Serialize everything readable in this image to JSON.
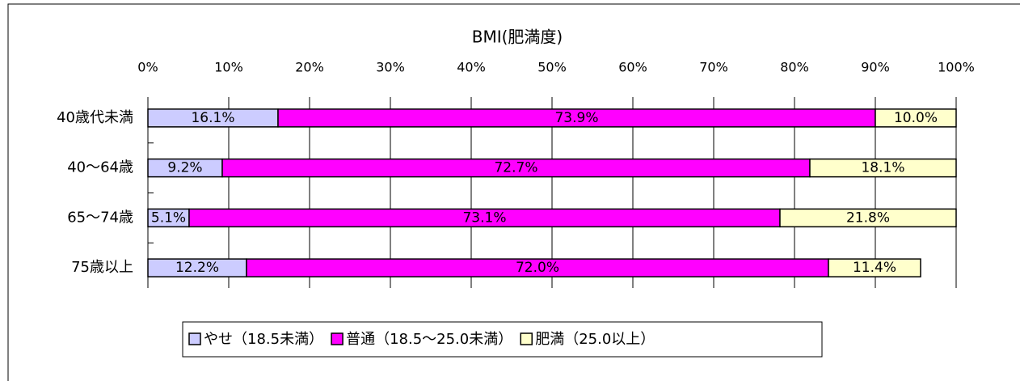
{
  "chart_data": {
    "type": "bar",
    "orientation": "horizontal",
    "stacked": true,
    "title": "BMI(肥満度)",
    "categories": [
      "40歳代未満",
      "40～64歳",
      "65～74歳",
      "75歳以上"
    ],
    "series": [
      {
        "name": "やせ（18.5未満）",
        "color": "#ccccff",
        "values": [
          16.1,
          9.2,
          5.1,
          12.2
        ],
        "value_labels": [
          "16.1%",
          "9.2%",
          "5.1%",
          "12.2%"
        ]
      },
      {
        "name": "普通（18.5～25.0未満）",
        "color": "#ff00ff",
        "values": [
          73.9,
          72.7,
          73.1,
          72.0
        ],
        "value_labels": [
          "73.9%",
          "72.7%",
          "73.1%",
          "72.0%"
        ]
      },
      {
        "name": "肥満（25.0以上）",
        "color": "#ffffcc",
        "values": [
          10.0,
          18.1,
          21.8,
          11.4
        ],
        "value_labels": [
          "10.0%",
          "18.1%",
          "21.8%",
          "11.4%"
        ]
      }
    ],
    "xlim": [
      0,
      100
    ],
    "xticks": [
      {
        "value": 0,
        "label": "0%"
      },
      {
        "value": 10,
        "label": "10%"
      },
      {
        "value": 20,
        "label": "20%"
      },
      {
        "value": 30,
        "label": "30%"
      },
      {
        "value": 40,
        "label": "40%"
      },
      {
        "value": 50,
        "label": "50%"
      },
      {
        "value": 60,
        "label": "60%"
      },
      {
        "value": 70,
        "label": "70%"
      },
      {
        "value": 80,
        "label": "80%"
      },
      {
        "value": 90,
        "label": "90%"
      },
      {
        "value": 100,
        "label": "100%"
      }
    ],
    "grid": true,
    "legend": "bottom"
  }
}
